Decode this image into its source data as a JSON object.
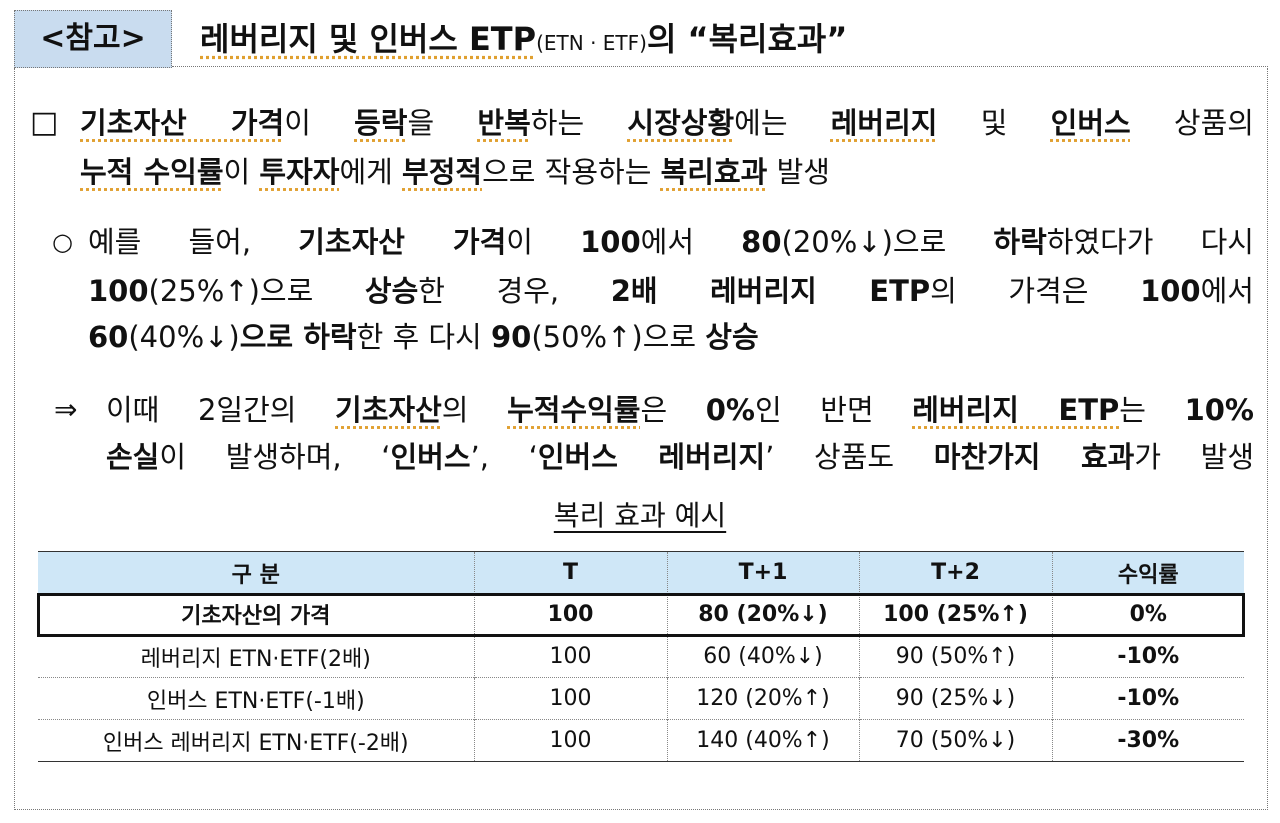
{
  "header": {
    "tag": "<참고>",
    "title_pre": "레버리지 및 인버스 ETP",
    "title_sub": "(ETN · ETF)",
    "title_post": "의 “복리효과”"
  },
  "bullet1": {
    "marker": "□",
    "line1": [
      "기초자산 가격",
      "이 ",
      "등락",
      "을 ",
      "반복",
      "하는 ",
      "시장상황",
      "에는 ",
      "레버리지",
      " 및 ",
      "인버스",
      " 상품의"
    ],
    "line2": [
      "누적 수익률",
      "이 ",
      "투자자",
      "에게 ",
      "부정적",
      "으로 작용하는 ",
      "복리효과",
      " 발생"
    ]
  },
  "bullet2": {
    "marker": "○",
    "line1": [
      "예를 들어, ",
      "기초자산 가격",
      "이 ",
      "100",
      "에서 ",
      "80",
      "(20%↓)으로 ",
      "하락",
      "하였다가 다시"
    ],
    "line2": [
      "100",
      "(25%↑)으로 ",
      "상승",
      "한 경우, ",
      "2배 레버리지 ETP",
      "의 가격은 ",
      "100",
      "에서"
    ],
    "line3": [
      "60",
      "(40%↓)",
      "으로 하락",
      "한 후 다시 ",
      "90",
      "(50%↑)으로 ",
      "상승"
    ]
  },
  "bullet3": {
    "marker": "⇒",
    "line1": [
      "이때 2일간의 ",
      "기초자산",
      "의 ",
      "누적수익률",
      "은 ",
      "0%",
      "인 반면 ",
      "레버리지 ETP",
      "는 ",
      "10%"
    ],
    "line2": [
      "손실",
      "이 발생하며, ‘",
      "인버스",
      "’, ‘",
      "인버스 레버리지",
      "’ 상품도 ",
      "마찬가지 효과",
      "가 발생"
    ]
  },
  "table": {
    "caption": "복리 효과 예시",
    "headers": [
      "구  분",
      "T",
      "T+1",
      "T+2",
      "수익률"
    ],
    "rows": [
      [
        "기초자산의 가격",
        "100",
        "80 (20%↓)",
        "100 (25%↑)",
        "0%"
      ],
      [
        "레버리지 ETN·ETF(2배)",
        "100",
        "60 (40%↓)",
        "90 (50%↑)",
        "-10%"
      ],
      [
        "인버스 ETN·ETF(-1배)",
        "100",
        "120 (20%↑)",
        "90 (25%↓)",
        "-10%"
      ],
      [
        "인버스 레버리지 ETN·ETF(-2배)",
        "100",
        "140 (40%↑)",
        "70 (50%↓)",
        "-30%"
      ]
    ]
  },
  "colors": {
    "tag_bg": "#c9dcef",
    "header_row_bg": "#cfe7f7"
  }
}
